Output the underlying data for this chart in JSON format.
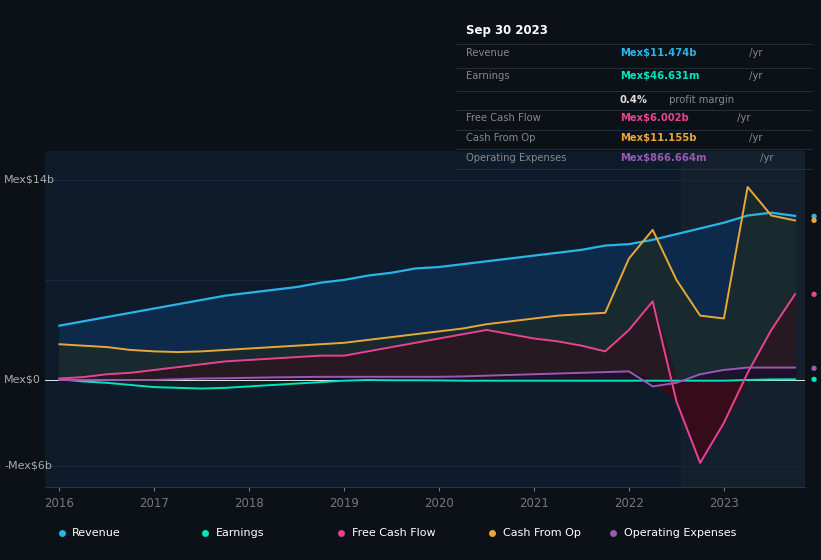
{
  "bg_color": "#0c1117",
  "plot_bg_color": "#0d1b2a",
  "grid_color": "#1e3a4a",
  "y_label_top": "Mex$14b",
  "y_label_mid": "Mex$0",
  "y_label_bot": "-Mex$6b",
  "x_ticks": [
    2016,
    2017,
    2018,
    2019,
    2020,
    2021,
    2022,
    2023
  ],
  "ylim": [
    -7.5,
    16.0
  ],
  "colors": {
    "revenue": "#29b5e8",
    "earnings": "#00e5c0",
    "free_cash_flow": "#e84393",
    "cash_from_op": "#e8a838",
    "operating_expenses": "#9b59b6"
  },
  "info_box": {
    "date": "Sep 30 2023",
    "revenue_val": "Mex$11.474b",
    "earnings_val": "Mex$46.631m",
    "profit_margin": "0.4%",
    "fcf_val": "Mex$6.002b",
    "cash_op_val": "Mex$11.155b",
    "op_exp_val": "Mex$866.664m"
  },
  "legend": [
    {
      "label": "Revenue",
      "color": "#29b5e8"
    },
    {
      "label": "Earnings",
      "color": "#00e5c0"
    },
    {
      "label": "Free Cash Flow",
      "color": "#e84393"
    },
    {
      "label": "Cash From Op",
      "color": "#e8a838"
    },
    {
      "label": "Operating Expenses",
      "color": "#9b59b6"
    }
  ],
  "t": [
    2016.0,
    2016.25,
    2016.5,
    2016.75,
    2017.0,
    2017.25,
    2017.5,
    2017.75,
    2018.0,
    2018.25,
    2018.5,
    2018.75,
    2019.0,
    2019.25,
    2019.5,
    2019.75,
    2020.0,
    2020.25,
    2020.5,
    2020.75,
    2021.0,
    2021.25,
    2021.5,
    2021.75,
    2022.0,
    2022.25,
    2022.5,
    2022.75,
    2023.0,
    2023.25,
    2023.5,
    2023.75
  ],
  "revenue": [
    3.8,
    4.1,
    4.4,
    4.7,
    5.0,
    5.3,
    5.6,
    5.9,
    6.1,
    6.3,
    6.5,
    6.8,
    7.0,
    7.3,
    7.5,
    7.8,
    7.9,
    8.1,
    8.3,
    8.5,
    8.7,
    8.9,
    9.1,
    9.4,
    9.5,
    9.8,
    10.2,
    10.6,
    11.0,
    11.5,
    11.7,
    11.474
  ],
  "earnings": [
    0.05,
    -0.1,
    -0.2,
    -0.35,
    -0.5,
    -0.55,
    -0.6,
    -0.55,
    -0.45,
    -0.35,
    -0.25,
    -0.15,
    -0.05,
    0.0,
    -0.02,
    -0.02,
    -0.03,
    -0.05,
    -0.05,
    -0.05,
    -0.05,
    -0.05,
    -0.05,
    -0.05,
    -0.05,
    -0.05,
    -0.05,
    -0.05,
    -0.05,
    0.0,
    0.04,
    0.046
  ],
  "free_cash_flow": [
    0.1,
    0.2,
    0.4,
    0.5,
    0.7,
    0.9,
    1.1,
    1.3,
    1.4,
    1.5,
    1.6,
    1.7,
    1.7,
    2.0,
    2.3,
    2.6,
    2.9,
    3.2,
    3.5,
    3.2,
    2.9,
    2.7,
    2.4,
    2.0,
    3.5,
    5.5,
    -1.5,
    -5.8,
    -3.0,
    0.5,
    3.5,
    6.0
  ],
  "cash_from_op": [
    2.5,
    2.4,
    2.3,
    2.1,
    2.0,
    1.95,
    2.0,
    2.1,
    2.2,
    2.3,
    2.4,
    2.5,
    2.6,
    2.8,
    3.0,
    3.2,
    3.4,
    3.6,
    3.9,
    4.1,
    4.3,
    4.5,
    4.6,
    4.7,
    8.5,
    10.5,
    7.0,
    4.5,
    4.3,
    13.5,
    11.5,
    11.155
  ],
  "operating_expenses": [
    0.0,
    0.0,
    0.0,
    0.0,
    0.0,
    0.05,
    0.1,
    0.12,
    0.15,
    0.18,
    0.2,
    0.22,
    0.22,
    0.22,
    0.22,
    0.22,
    0.22,
    0.25,
    0.3,
    0.35,
    0.4,
    0.45,
    0.5,
    0.55,
    0.6,
    -0.45,
    -0.2,
    0.4,
    0.7,
    0.866,
    0.866,
    0.866
  ]
}
